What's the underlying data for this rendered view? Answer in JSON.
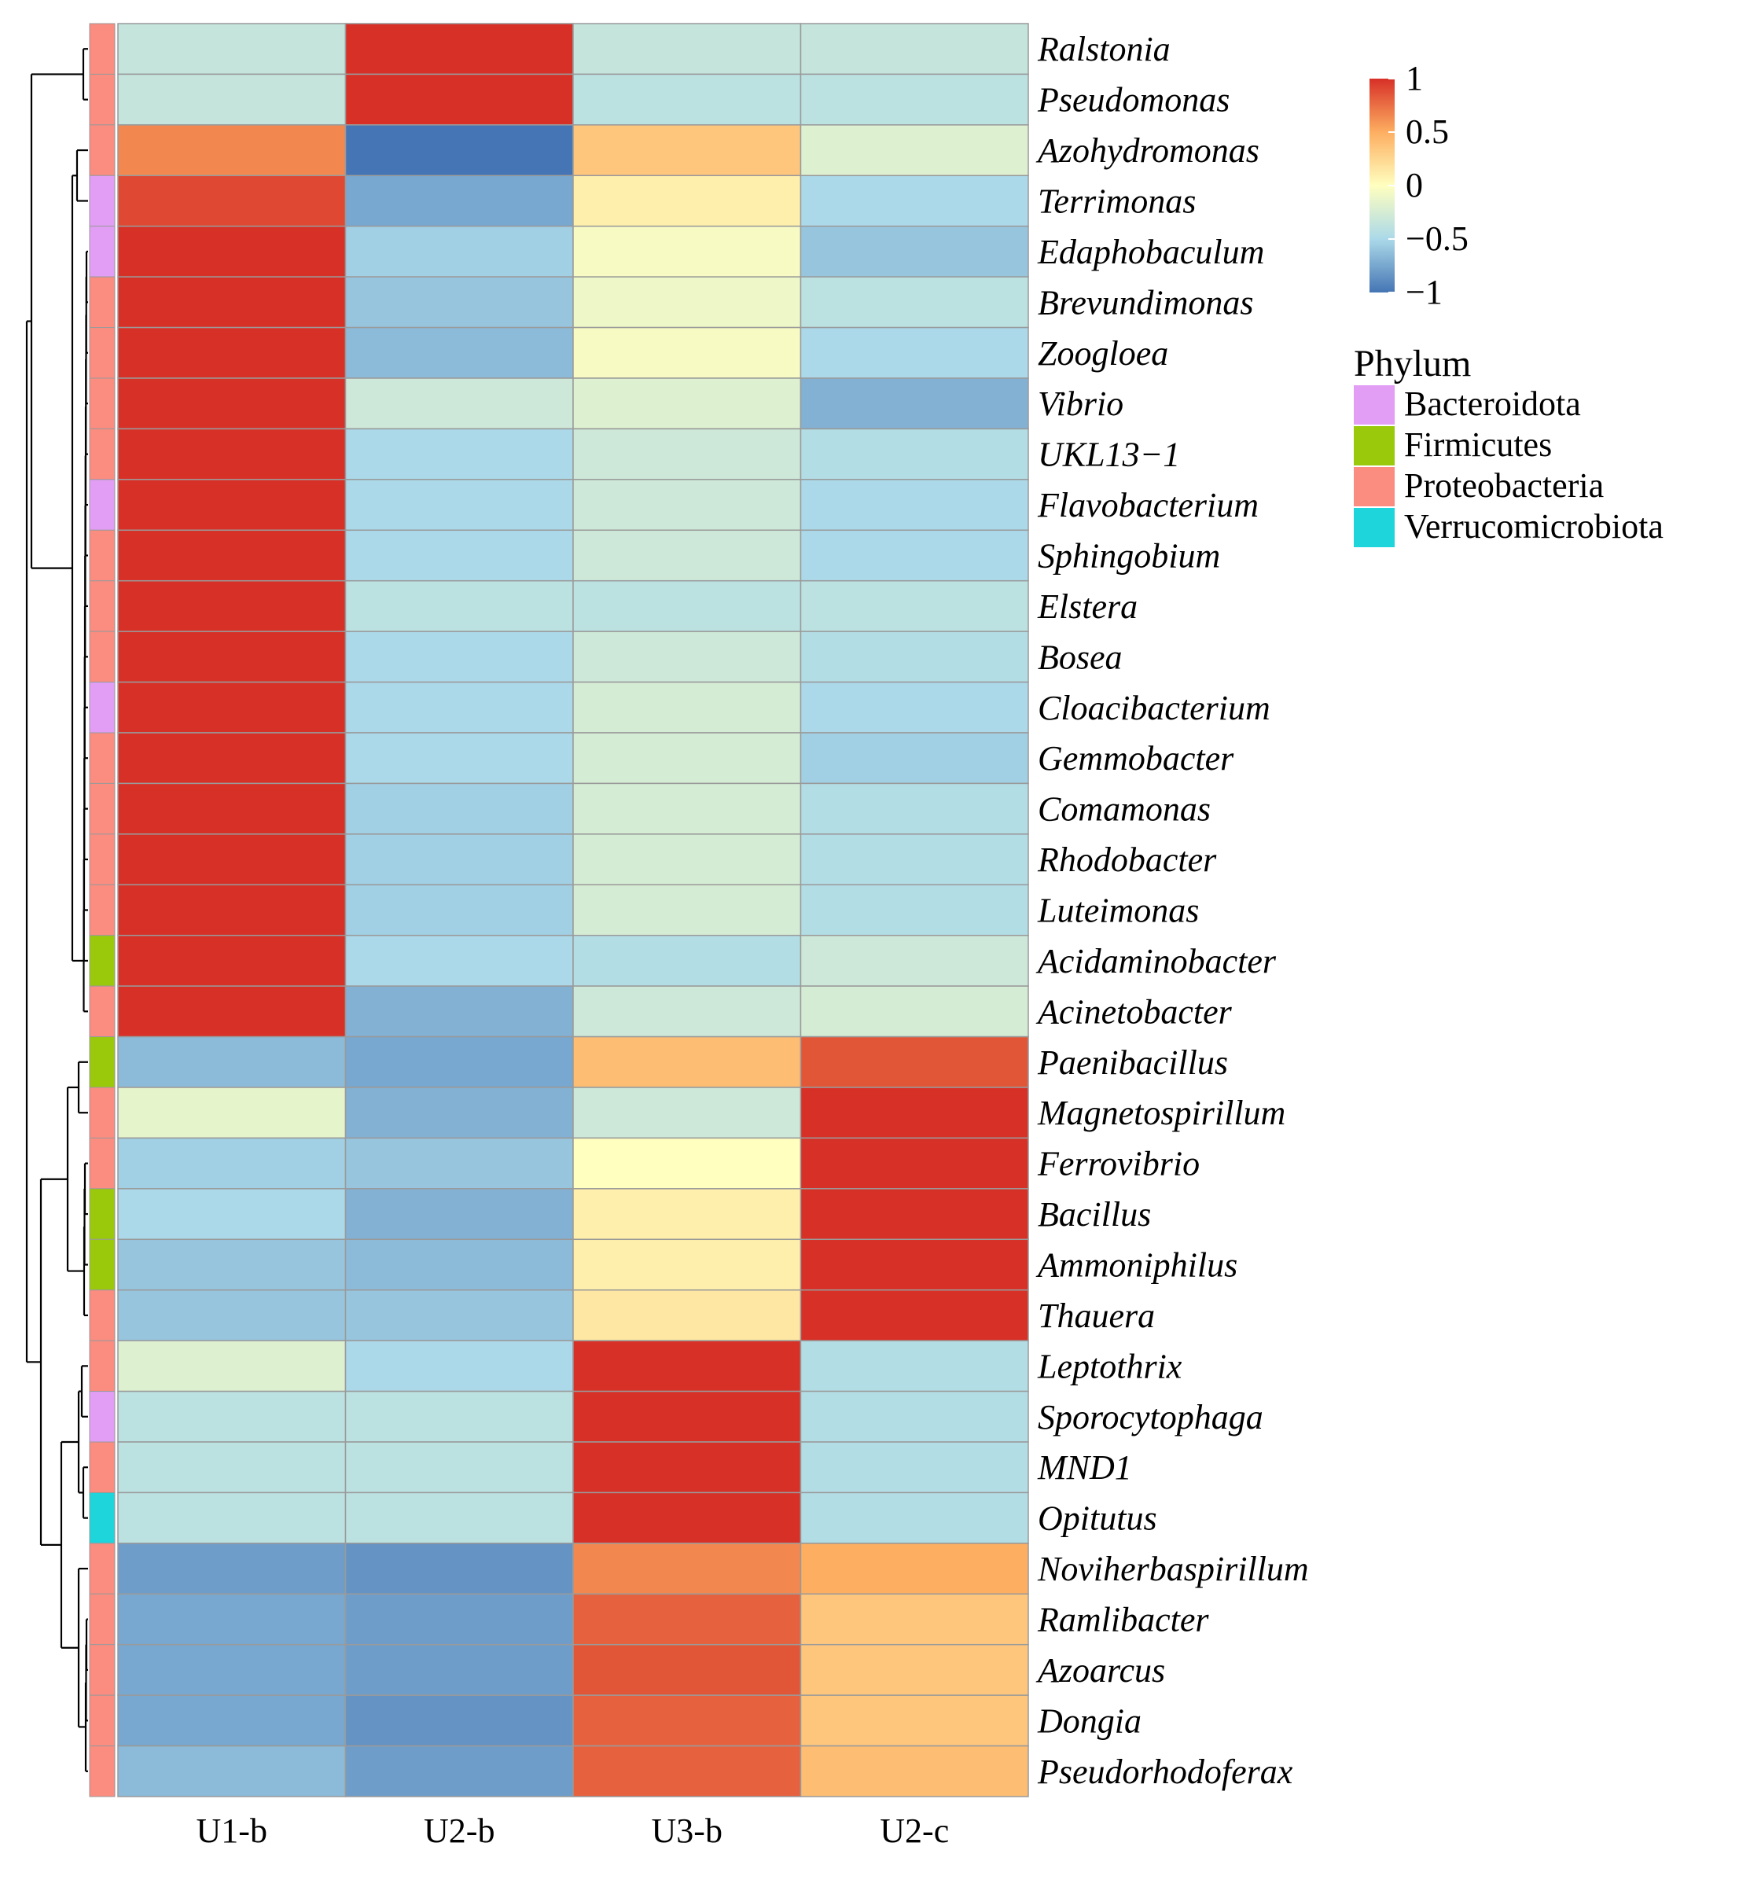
{
  "chart_data": {
    "type": "heatmap",
    "columns": [
      "U1-b",
      "U2-b",
      "U3-b",
      "U2-c"
    ],
    "rows": [
      {
        "name": "Ralstonia",
        "phylum": "Proteobacteria",
        "values": [
          -0.35,
          1.0,
          -0.35,
          -0.35
        ]
      },
      {
        "name": "Pseudomonas",
        "phylum": "Proteobacteria",
        "values": [
          -0.35,
          1.0,
          -0.4,
          -0.4
        ]
      },
      {
        "name": "Azohydromonas",
        "phylum": "Proteobacteria",
        "values": [
          0.65,
          -1.0,
          0.35,
          -0.2
        ]
      },
      {
        "name": "Terrimonas",
        "phylum": "Bacteroidota",
        "values": [
          0.9,
          -0.75,
          0.1,
          -0.5
        ]
      },
      {
        "name": "Edaphobaculum",
        "phylum": "Bacteroidota",
        "values": [
          1.0,
          -0.55,
          -0.05,
          -0.6
        ]
      },
      {
        "name": "Brevundimonas",
        "phylum": "Proteobacteria",
        "values": [
          1.0,
          -0.6,
          -0.1,
          -0.4
        ]
      },
      {
        "name": "Zoogloea",
        "phylum": "Proteobacteria",
        "values": [
          1.0,
          -0.65,
          -0.05,
          -0.5
        ]
      },
      {
        "name": "Vibrio",
        "phylum": "Proteobacteria",
        "values": [
          1.0,
          -0.3,
          -0.2,
          -0.7
        ]
      },
      {
        "name": "UKL13−1",
        "phylum": "Proteobacteria",
        "values": [
          1.0,
          -0.5,
          -0.3,
          -0.45
        ]
      },
      {
        "name": "Flavobacterium",
        "phylum": "Bacteroidota",
        "values": [
          1.0,
          -0.5,
          -0.3,
          -0.5
        ]
      },
      {
        "name": "Sphingobium",
        "phylum": "Proteobacteria",
        "values": [
          1.0,
          -0.5,
          -0.3,
          -0.5
        ]
      },
      {
        "name": "Elstera",
        "phylum": "Proteobacteria",
        "values": [
          1.0,
          -0.4,
          -0.4,
          -0.4
        ]
      },
      {
        "name": "Bosea",
        "phylum": "Proteobacteria",
        "values": [
          1.0,
          -0.5,
          -0.3,
          -0.45
        ]
      },
      {
        "name": "Cloacibacterium",
        "phylum": "Bacteroidota",
        "values": [
          1.0,
          -0.5,
          -0.25,
          -0.5
        ]
      },
      {
        "name": "Gemmobacter",
        "phylum": "Proteobacteria",
        "values": [
          1.0,
          -0.5,
          -0.25,
          -0.55
        ]
      },
      {
        "name": "Comamonas",
        "phylum": "Proteobacteria",
        "values": [
          1.0,
          -0.55,
          -0.25,
          -0.45
        ]
      },
      {
        "name": "Rhodobacter",
        "phylum": "Proteobacteria",
        "values": [
          1.0,
          -0.55,
          -0.25,
          -0.45
        ]
      },
      {
        "name": "Luteimonas",
        "phylum": "Proteobacteria",
        "values": [
          1.0,
          -0.55,
          -0.25,
          -0.45
        ]
      },
      {
        "name": "Acidaminobacter",
        "phylum": "Firmicutes",
        "values": [
          1.0,
          -0.5,
          -0.45,
          -0.3
        ]
      },
      {
        "name": "Acinetobacter",
        "phylum": "Proteobacteria",
        "values": [
          1.0,
          -0.7,
          -0.3,
          -0.25
        ]
      },
      {
        "name": "Paenibacillus",
        "phylum": "Firmicutes",
        "values": [
          -0.65,
          -0.75,
          0.4,
          0.85
        ]
      },
      {
        "name": "Magnetospirillum",
        "phylum": "Proteobacteria",
        "values": [
          -0.15,
          -0.7,
          -0.3,
          1.0
        ]
      },
      {
        "name": "Ferrovibrio",
        "phylum": "Proteobacteria",
        "values": [
          -0.55,
          -0.6,
          0.0,
          1.0
        ]
      },
      {
        "name": "Bacillus",
        "phylum": "Firmicutes",
        "values": [
          -0.5,
          -0.7,
          0.1,
          1.0
        ]
      },
      {
        "name": "Ammoniphilus",
        "phylum": "Firmicutes",
        "values": [
          -0.6,
          -0.65,
          0.1,
          1.0
        ]
      },
      {
        "name": "Thauera",
        "phylum": "Proteobacteria",
        "values": [
          -0.6,
          -0.6,
          0.15,
          1.0
        ]
      },
      {
        "name": "Leptothrix",
        "phylum": "Proteobacteria",
        "values": [
          -0.2,
          -0.5,
          1.0,
          -0.45
        ]
      },
      {
        "name": "Sporocytophaga",
        "phylum": "Bacteroidota",
        "values": [
          -0.4,
          -0.4,
          1.0,
          -0.45
        ]
      },
      {
        "name": "MND1",
        "phylum": "Proteobacteria",
        "values": [
          -0.4,
          -0.4,
          1.0,
          -0.45
        ]
      },
      {
        "name": "Opitutus",
        "phylum": "Verrucomicrobiota",
        "values": [
          -0.4,
          -0.4,
          1.0,
          -0.45
        ]
      },
      {
        "name": "Noviherbaspirillum",
        "phylum": "Proteobacteria",
        "values": [
          -0.8,
          -0.85,
          0.65,
          0.5
        ]
      },
      {
        "name": "Ramlibacter",
        "phylum": "Proteobacteria",
        "values": [
          -0.75,
          -0.8,
          0.8,
          0.35
        ]
      },
      {
        "name": "Azoarcus",
        "phylum": "Proteobacteria",
        "values": [
          -0.75,
          -0.8,
          0.85,
          0.35
        ]
      },
      {
        "name": "Dongia",
        "phylum": "Proteobacteria",
        "values": [
          -0.75,
          -0.85,
          0.8,
          0.35
        ]
      },
      {
        "name": "Pseudorhodoferax",
        "phylum": "Proteobacteria",
        "values": [
          -0.65,
          -0.8,
          0.8,
          0.4
        ]
      }
    ],
    "color_scale": {
      "min": -1,
      "max": 1,
      "stops": [
        {
          "value": -1,
          "color": "#4575b4"
        },
        {
          "value": -0.5,
          "color": "#abd9e9"
        },
        {
          "value": 0,
          "color": "#ffffbf"
        },
        {
          "value": 0.5,
          "color": "#fdae61"
        },
        {
          "value": 1,
          "color": "#d73027"
        }
      ],
      "ticks": [
        {
          "value": 1,
          "label": "1"
        },
        {
          "value": 0.5,
          "label": "0.5"
        },
        {
          "value": 0,
          "label": "0"
        },
        {
          "value": -0.5,
          "label": "−0.5"
        },
        {
          "value": -1,
          "label": "−1"
        }
      ]
    },
    "annotation": {
      "title": "Phylum",
      "categories": [
        {
          "name": "Bacteroidota",
          "color": "#e29ef5"
        },
        {
          "name": "Firmicutes",
          "color": "#99c90a"
        },
        {
          "name": "Proteobacteria",
          "color": "#fb8c80"
        },
        {
          "name": "Verrucomicrobiota",
          "color": "#1ed5dc"
        }
      ]
    },
    "row_dendrogram": true,
    "legend_position": "right"
  }
}
